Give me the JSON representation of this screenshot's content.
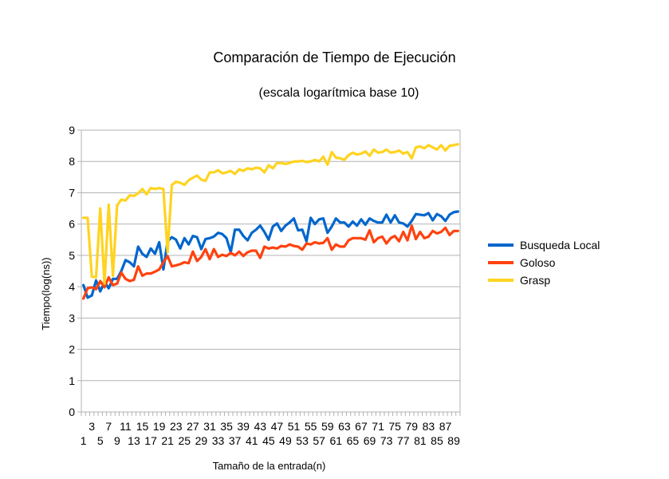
{
  "chart_data": {
    "type": "line",
    "title": "Comparación de Tiempo de Ejecución",
    "subtitle": "(escala logarítmica base 10)",
    "xlabel": "Tamaño de la entrada(n)",
    "ylabel": "Tiempo(log(ns))",
    "ylim": [
      0,
      9
    ],
    "yticks": [
      0,
      1,
      2,
      3,
      4,
      5,
      6,
      7,
      8,
      9
    ],
    "x": [
      1,
      2,
      3,
      4,
      5,
      6,
      7,
      8,
      9,
      10,
      11,
      12,
      13,
      14,
      15,
      16,
      17,
      18,
      19,
      20,
      21,
      22,
      23,
      24,
      25,
      26,
      27,
      28,
      29,
      30,
      31,
      32,
      33,
      34,
      35,
      36,
      37,
      38,
      39,
      40,
      41,
      42,
      43,
      44,
      45,
      46,
      47,
      48,
      49,
      50,
      51,
      52,
      53,
      54,
      55,
      56,
      57,
      58,
      59,
      60,
      61,
      62,
      63,
      64,
      65,
      66,
      67,
      68,
      69,
      70,
      71,
      72,
      73,
      74,
      75,
      76,
      77,
      78,
      79,
      80,
      81,
      82,
      83,
      84,
      85,
      86,
      87,
      88,
      89,
      90
    ],
    "xtick_labels_odd_row1": [
      "3",
      "7",
      "11",
      "15",
      "19",
      "23",
      "27",
      "31",
      "35",
      "39",
      "43",
      "47",
      "51",
      "55",
      "59",
      "63",
      "67",
      "71",
      "75",
      "79",
      "83",
      "87"
    ],
    "xtick_labels_odd_row2": [
      "1",
      "5",
      "9",
      "13",
      "17",
      "21",
      "25",
      "29",
      "33",
      "37",
      "41",
      "45",
      "49",
      "53",
      "57",
      "61",
      "65",
      "69",
      "73",
      "77",
      "81",
      "85",
      "89"
    ],
    "xtick_row1": [
      3,
      7,
      11,
      15,
      19,
      23,
      27,
      31,
      35,
      39,
      43,
      47,
      51,
      55,
      59,
      63,
      67,
      71,
      75,
      79,
      83,
      87
    ],
    "xtick_row2": [
      1,
      5,
      9,
      13,
      17,
      21,
      25,
      29,
      33,
      37,
      41,
      45,
      49,
      53,
      57,
      61,
      65,
      69,
      73,
      77,
      81,
      85,
      89
    ],
    "grid": true,
    "legend_position": "right",
    "series": [
      {
        "name": "Busqueda Local",
        "color": "#0066cc",
        "values": [
          4.05,
          3.65,
          3.72,
          4.2,
          3.85,
          4.15,
          3.95,
          4.25,
          4.25,
          4.5,
          4.85,
          4.78,
          4.65,
          5.28,
          5.05,
          4.95,
          5.22,
          5.05,
          5.42,
          4.55,
          5.45,
          5.58,
          5.5,
          5.22,
          5.55,
          5.35,
          5.62,
          5.58,
          5.2,
          5.52,
          5.55,
          5.6,
          5.72,
          5.68,
          5.55,
          5.1,
          5.82,
          5.82,
          5.62,
          5.48,
          5.72,
          5.82,
          5.95,
          5.75,
          5.5,
          5.92,
          6.02,
          5.78,
          5.95,
          6.05,
          6.18,
          5.8,
          5.82,
          5.45,
          6.2,
          6.0,
          6.15,
          6.18,
          5.72,
          5.92,
          6.18,
          6.05,
          6.05,
          5.92,
          6.08,
          5.95,
          6.15,
          5.98,
          6.18,
          6.1,
          6.05,
          6.05,
          6.3,
          6.05,
          6.28,
          6.05,
          6.02,
          5.92,
          6.1,
          6.32,
          6.3,
          6.28,
          6.35,
          6.12,
          6.32,
          6.25,
          6.1,
          6.3,
          6.38,
          6.4
        ]
      },
      {
        "name": "Goloso",
        "color": "#ff420e",
        "values": [
          3.62,
          3.95,
          3.98,
          3.92,
          4.18,
          3.98,
          4.3,
          4.05,
          4.1,
          4.45,
          4.25,
          4.18,
          4.22,
          4.65,
          4.35,
          4.42,
          4.42,
          4.48,
          4.55,
          4.78,
          4.98,
          4.65,
          4.68,
          4.72,
          4.78,
          4.75,
          5.12,
          4.82,
          4.95,
          5.2,
          4.88,
          5.2,
          4.95,
          5.02,
          4.98,
          5.08,
          5.0,
          5.12,
          4.98,
          5.1,
          5.15,
          5.15,
          4.92,
          5.28,
          5.22,
          5.25,
          5.22,
          5.3,
          5.28,
          5.35,
          5.3,
          5.28,
          5.18,
          5.38,
          5.35,
          5.42,
          5.38,
          5.4,
          5.55,
          5.18,
          5.35,
          5.28,
          5.28,
          5.48,
          5.55,
          5.55,
          5.55,
          5.5,
          5.8,
          5.42,
          5.55,
          5.6,
          5.38,
          5.55,
          5.62,
          5.45,
          5.75,
          5.48,
          5.95,
          5.52,
          5.75,
          5.55,
          5.6,
          5.78,
          5.7,
          5.75,
          5.88,
          5.65,
          5.78,
          5.78
        ]
      },
      {
        "name": "Grasp",
        "color": "#ffd320",
        "values": [
          6.2,
          6.2,
          4.32,
          4.3,
          6.5,
          4.1,
          6.62,
          4.35,
          6.6,
          6.78,
          6.75,
          6.92,
          6.9,
          6.98,
          7.12,
          6.95,
          7.15,
          7.12,
          7.15,
          7.12,
          5.1,
          7.25,
          7.35,
          7.32,
          7.25,
          7.4,
          7.48,
          7.55,
          7.42,
          7.38,
          7.65,
          7.65,
          7.72,
          7.62,
          7.65,
          7.7,
          7.6,
          7.75,
          7.7,
          7.78,
          7.75,
          7.8,
          7.78,
          7.65,
          7.88,
          7.78,
          7.95,
          7.95,
          7.92,
          7.95,
          8.0,
          8.0,
          8.02,
          7.98,
          8.0,
          8.05,
          8.0,
          8.15,
          7.9,
          8.3,
          8.12,
          8.1,
          8.05,
          8.2,
          8.28,
          8.22,
          8.25,
          8.32,
          8.18,
          8.38,
          8.28,
          8.3,
          8.38,
          8.28,
          8.3,
          8.35,
          8.25,
          8.3,
          8.1,
          8.45,
          8.48,
          8.42,
          8.52,
          8.45,
          8.38,
          8.52,
          8.35,
          8.5,
          8.52,
          8.55
        ]
      }
    ]
  }
}
